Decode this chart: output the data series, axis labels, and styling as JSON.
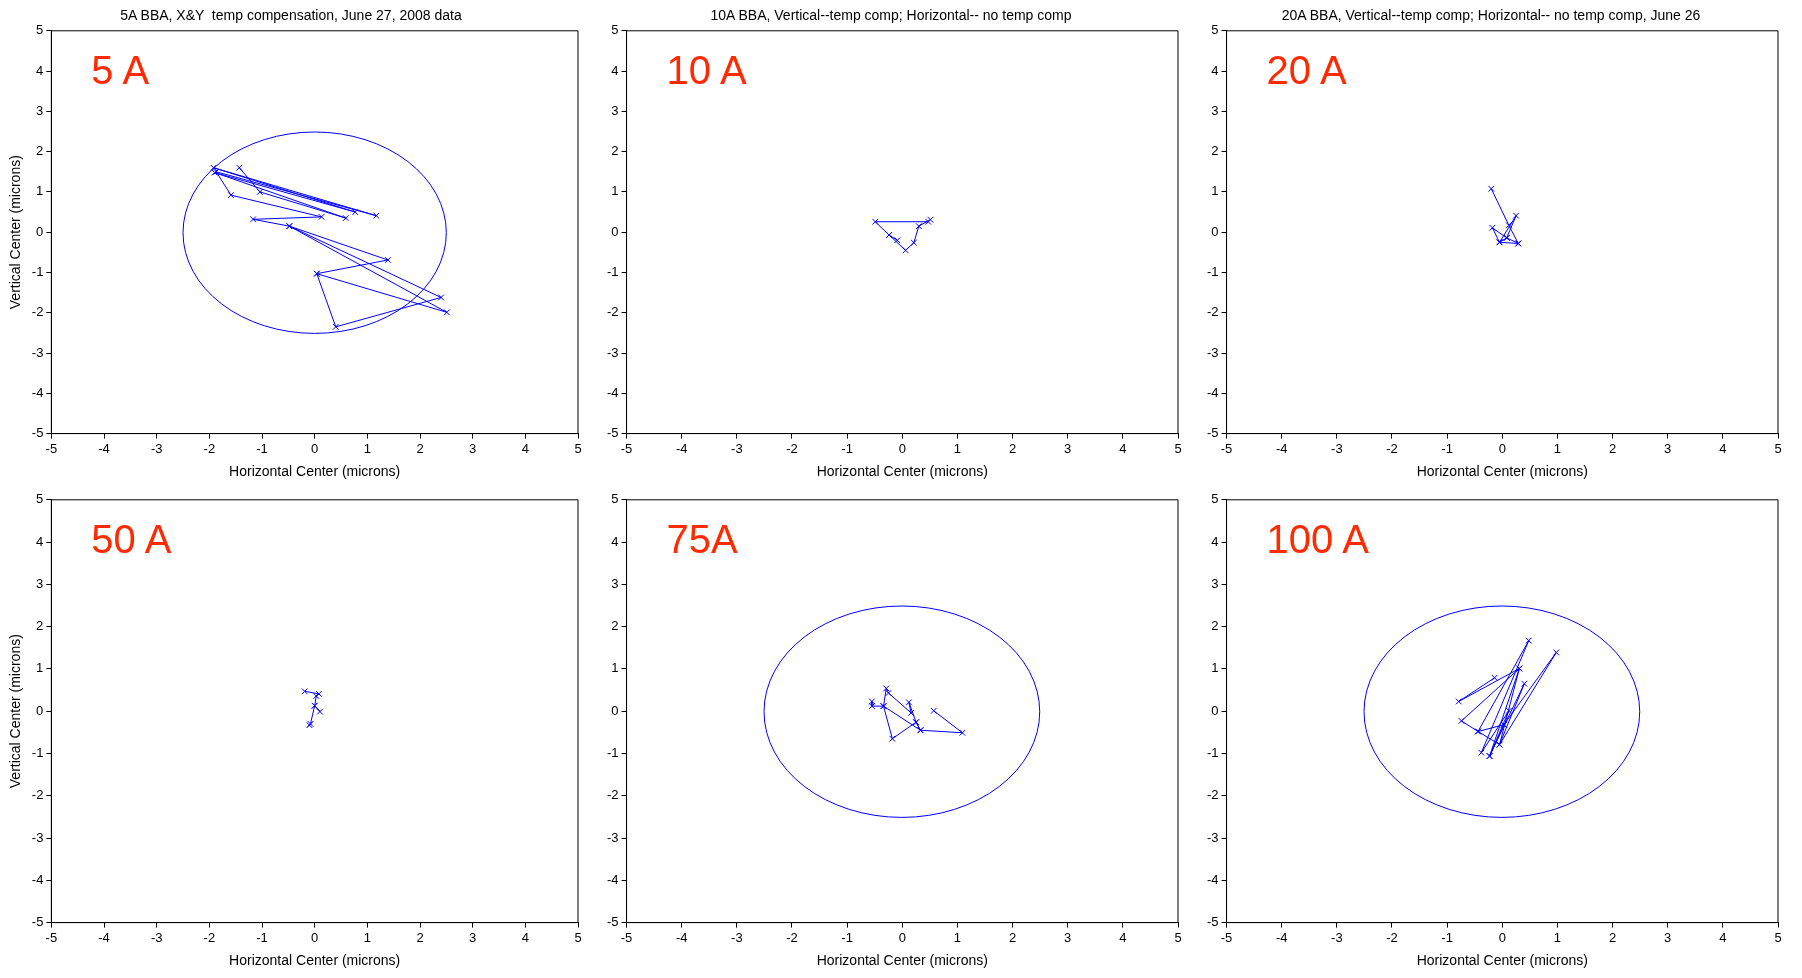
{
  "chart_data": [
    {
      "type": "line",
      "title": "5A BBA, X&Y  temp compensation, June 27, 2008 data",
      "xlabel": "Horizontal Center (microns)",
      "ylabel": "Vertical Center (microns)",
      "annotations": [
        "5 A"
      ],
      "marker": "cross",
      "grid": false,
      "xlim": [
        -5,
        5
      ],
      "ylim": [
        -5,
        5
      ],
      "xticks": [
        -5,
        -4,
        -3,
        -2,
        -1,
        0,
        1,
        2,
        3,
        4,
        5
      ],
      "yticks": [
        -5,
        -4,
        -3,
        -2,
        -1,
        0,
        1,
        2,
        3,
        4,
        5
      ],
      "series": [
        {
          "color": "#0000ff",
          "x": [
            -1.43,
            -1.04,
            0.59,
            -1.9,
            0.77,
            -1.92,
            1.17,
            -1.87,
            -1.59,
            0.13,
            -1.17,
            -0.48,
            1.39,
            0.04,
            2.51,
            -0.48,
            2.4,
            0.4,
            0.04
          ],
          "values": [
            1.6,
            1.0,
            0.35,
            1.48,
            0.5,
            1.6,
            0.41,
            1.5,
            0.92,
            0.38,
            0.32,
            0.15,
            -0.69,
            -1.03,
            -1.99,
            0.15,
            -1.62,
            -2.35,
            -1.03
          ]
        }
      ]
    },
    {
      "type": "line",
      "title": "10A BBA, Vertical--temp comp; Horizontal-- no temp comp",
      "xlabel": "Horizontal Center (microns)",
      "annotations": [
        "10 A"
      ],
      "marker": "cross",
      "grid": false,
      "xlim": [
        -5,
        5
      ],
      "ylim": [
        -5,
        5
      ],
      "xticks": [
        -5,
        -4,
        -3,
        -2,
        -1,
        0,
        1,
        2,
        3,
        4,
        5
      ],
      "yticks": [
        -5,
        -4,
        -3,
        -2,
        -1,
        0,
        1,
        2,
        3,
        4,
        5
      ],
      "series": [
        {
          "color": "#0000ff",
          "x": [
            -0.09,
            -0.24,
            -0.49,
            0.47,
            0.51,
            0.3,
            0.21,
            0.06,
            -0.24
          ],
          "values": [
            -0.2,
            -0.07,
            0.26,
            0.26,
            0.31,
            0.15,
            -0.26,
            -0.45,
            -0.07
          ]
        }
      ]
    },
    {
      "type": "line",
      "title": "20A BBA, Vertical--temp comp; Horizontal-- no temp comp, June 26",
      "xlabel": "Horizontal Center (microns)",
      "annotations": [
        "20 A"
      ],
      "marker": "cross",
      "grid": false,
      "xlim": [
        -5,
        5
      ],
      "ylim": [
        -5,
        5
      ],
      "xticks": [
        -5,
        -4,
        -3,
        -2,
        -1,
        0,
        1,
        2,
        3,
        4,
        5
      ],
      "yticks": [
        -5,
        -4,
        -3,
        -2,
        -1,
        0,
        1,
        2,
        3,
        4,
        5
      ],
      "series": [
        {
          "color": "#0000ff",
          "x": [
            -0.2,
            0.12,
            0.29,
            0.08,
            -0.05,
            -0.18,
            0.08,
            0.25,
            -0.05,
            0.29
          ],
          "values": [
            1.08,
            0.17,
            -0.28,
            -0.14,
            -0.25,
            0.11,
            -0.14,
            0.41,
            -0.25,
            -0.28
          ]
        }
      ]
    },
    {
      "type": "line",
      "xlabel": "Horizontal Center (microns)",
      "ylabel": "Vertical Center (microns)",
      "annotations": [
        "50 A"
      ],
      "marker": "cross",
      "grid": false,
      "xlim": [
        -5,
        5
      ],
      "ylim": [
        -5,
        5
      ],
      "xticks": [
        -5,
        -4,
        -3,
        -2,
        -1,
        0,
        1,
        2,
        3,
        4,
        5
      ],
      "yticks": [
        -5,
        -4,
        -3,
        -2,
        -1,
        0,
        1,
        2,
        3,
        4,
        5
      ],
      "series": [
        {
          "color": "#0000ff",
          "x": [
            -0.19,
            0.08,
            0.03,
            0,
            0.1,
            0,
            -0.08,
            -0.1
          ],
          "values": [
            0.47,
            0.41,
            0.36,
            0.13,
            -0.01,
            0.13,
            -0.3,
            -0.33
          ]
        }
      ]
    },
    {
      "type": "line",
      "xlabel": "Horizontal Center (microns)",
      "annotations": [
        "75A"
      ],
      "marker": "cross",
      "grid": false,
      "xlim": [
        -5,
        5
      ],
      "ylim": [
        -5,
        5
      ],
      "xticks": [
        -5,
        -4,
        -3,
        -2,
        -1,
        0,
        1,
        2,
        3,
        4,
        5
      ],
      "yticks": [
        -5,
        -4,
        -3,
        -2,
        -1,
        0,
        1,
        2,
        3,
        4,
        5
      ],
      "series": [
        {
          "color": "#0000ff",
          "x": [
            -0.55,
            -0.55,
            -0.34,
            -0.29,
            -0.25,
            0.16,
            0.12,
            0.25,
            -0.18,
            -0.34,
            0.33,
            0.25,
            0.33,
            1.09,
            0.57
          ],
          "values": [
            0.23,
            0.12,
            0.12,
            0.54,
            0.43,
            -0.04,
            0.21,
            -0.26,
            -0.65,
            0.12,
            -0.45,
            -0.26,
            -0.45,
            -0.51,
            0.01
          ]
        }
      ]
    },
    {
      "type": "line",
      "xlabel": "Horizontal Center (microns)",
      "annotations": [
        "100 A"
      ],
      "marker": "cross",
      "grid": false,
      "xlim": [
        -5,
        5
      ],
      "ylim": [
        -5,
        5
      ],
      "xticks": [
        -5,
        -4,
        -3,
        -2,
        -1,
        0,
        1,
        2,
        3,
        4,
        5
      ],
      "yticks": [
        -5,
        -4,
        -3,
        -2,
        -1,
        0,
        1,
        2,
        3,
        4,
        5
      ],
      "series": [
        {
          "color": "#0000ff",
          "x": [
            -0.14,
            -0.79,
            0.31,
            -0.74,
            -0.44,
            0.48,
            -0.38,
            0.12,
            -0.23,
            0.4,
            -0.05,
            0.98,
            0.03,
            -0.44,
            -0.05,
            0.31,
            -0.23,
            0.03
          ],
          "values": [
            0.79,
            0.23,
            1.01,
            -0.23,
            -0.48,
            1.67,
            -0.98,
            0.01,
            -1.06,
            0.65,
            -0.79,
            1.39,
            -0.32,
            -0.48,
            -0.79,
            1.01,
            -1.06,
            -0.32
          ]
        }
      ]
    }
  ]
}
